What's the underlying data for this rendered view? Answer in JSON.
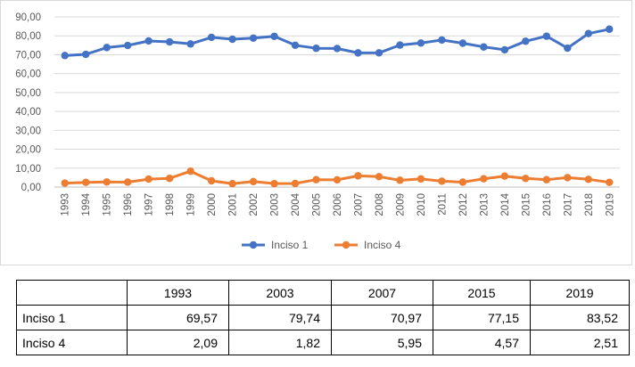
{
  "chart_data": {
    "type": "line",
    "categories": [
      "1993",
      "1994",
      "1995",
      "1996",
      "1997",
      "1998",
      "1999",
      "2000",
      "2001",
      "2002",
      "2003",
      "2004",
      "2005",
      "2006",
      "2007",
      "2008",
      "2009",
      "2010",
      "2011",
      "2012",
      "2013",
      "2014",
      "2015",
      "2016",
      "2017",
      "2018",
      "2019"
    ],
    "series": [
      {
        "name": "Inciso 1",
        "color": "#4472c4",
        "values": [
          69.57,
          70.2,
          73.8,
          74.9,
          77.3,
          76.8,
          75.7,
          79.2,
          78.2,
          78.8,
          79.74,
          75.0,
          73.4,
          73.3,
          70.97,
          71.0,
          75.1,
          76.2,
          77.8,
          76.1,
          74.1,
          72.6,
          77.15,
          79.8,
          73.5,
          81.2,
          83.52
        ]
      },
      {
        "name": "Inciso 4",
        "color": "#ed7d31",
        "values": [
          2.09,
          2.5,
          2.7,
          2.6,
          4.2,
          4.6,
          8.4,
          3.3,
          1.8,
          2.9,
          1.82,
          1.9,
          3.9,
          3.8,
          5.95,
          5.5,
          3.6,
          4.3,
          3.1,
          2.6,
          4.4,
          5.8,
          4.57,
          3.9,
          5.0,
          4.1,
          2.51
        ]
      }
    ],
    "y_ticks": [
      "0,00",
      "10,00",
      "20,00",
      "30,00",
      "40,00",
      "50,00",
      "60,00",
      "70,00",
      "80,00",
      "90,00"
    ],
    "ylim": [
      0,
      90
    ],
    "grid": true,
    "legend_position": "bottom"
  },
  "table": {
    "header": [
      "",
      "1993",
      "2003",
      "2007",
      "2015",
      "2019"
    ],
    "rows": [
      {
        "label": "Inciso 1",
        "cells": [
          "69,57",
          "79,74",
          "70,97",
          "77,15",
          "83,52"
        ]
      },
      {
        "label": "Inciso 4",
        "cells": [
          "2,09",
          "1,82",
          "5,95",
          "4,57",
          "2,51"
        ]
      }
    ]
  }
}
